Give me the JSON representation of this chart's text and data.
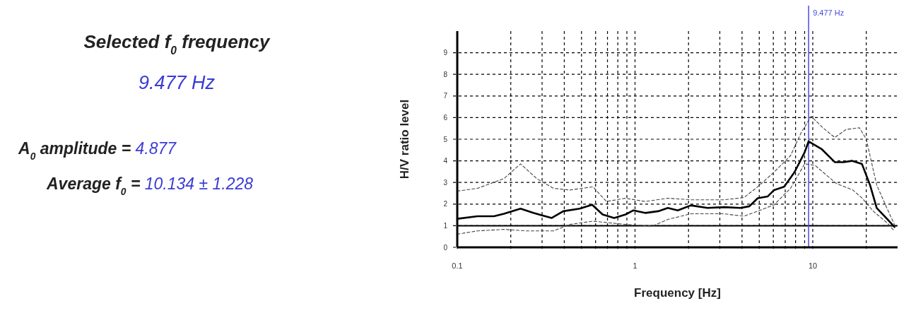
{
  "chart_data": {
    "type": "line",
    "xlabel": "Frequency [Hz]",
    "ylabel": "H/V ratio level",
    "log": "x",
    "grid": true,
    "marker": "none",
    "xlim": [
      0.1,
      30
    ],
    "ylim": [
      0,
      10
    ],
    "xticks": [
      0.1,
      {
        "value": 0.2,
        "label": null
      },
      {
        "value": 0.3,
        "label": null
      },
      {
        "value": 0.4,
        "label": null
      },
      {
        "value": 0.5,
        "label": null
      },
      {
        "value": 0.6,
        "label": null
      },
      {
        "value": 0.7,
        "label": null
      },
      {
        "value": 0.8,
        "label": null
      },
      {
        "value": 0.9,
        "label": null
      },
      1,
      {
        "value": 2,
        "label": null
      },
      {
        "value": 3,
        "label": null
      },
      {
        "value": 4,
        "label": null
      },
      {
        "value": 5,
        "label": null
      },
      {
        "value": 6,
        "label": null
      },
      {
        "value": 7,
        "label": null
      },
      {
        "value": 8,
        "label": null
      },
      {
        "value": 9,
        "label": null
      },
      10,
      {
        "value": 20,
        "label": null
      }
    ],
    "yticks": [
      0,
      1,
      2,
      3,
      4,
      5,
      6,
      7,
      8,
      9
    ],
    "series": [
      {
        "color": "#000000",
        "line_style": "solid",
        "x": [
          0.1,
          0.13,
          0.161,
          0.183,
          0.227,
          0.268,
          0.34,
          0.395,
          0.488,
          0.574,
          0.657,
          0.763,
          0.885,
          0.98,
          1.14,
          1.35,
          1.53,
          1.74,
          2.06,
          2.56,
          3.17,
          3.93,
          4.4,
          4.9,
          5.57,
          6.06,
          6.9,
          7.9,
          9.0,
          9.477,
          11.2,
          13.3,
          14.9,
          16.6,
          18.9,
          21.0,
          22.9,
          26.1,
          28.8
        ],
        "values": [
          1.32,
          1.44,
          1.44,
          1.55,
          1.79,
          1.59,
          1.36,
          1.67,
          1.79,
          1.97,
          1.52,
          1.36,
          1.52,
          1.71,
          1.59,
          1.67,
          1.82,
          1.71,
          1.94,
          1.82,
          1.86,
          1.82,
          1.9,
          2.27,
          2.35,
          2.65,
          2.8,
          3.48,
          4.39,
          4.9,
          4.55,
          3.94,
          3.94,
          4.0,
          3.86,
          2.88,
          1.82,
          1.33,
          0.94
        ]
      },
      {
        "color": "#444444",
        "line_style": "dashed",
        "x": [
          0.1,
          0.13,
          0.183,
          0.227,
          0.28,
          0.348,
          0.43,
          0.58,
          0.69,
          0.885,
          1.14,
          1.53,
          2.06,
          3.17,
          4.1,
          4.9,
          6.06,
          7.5,
          8.6,
          9.8,
          11.4,
          13.3,
          15.4,
          18.3,
          20.0,
          22.9,
          26.1,
          28.8
        ],
        "values": [
          2.6,
          2.73,
          3.18,
          3.86,
          3.18,
          2.73,
          2.65,
          2.8,
          2.12,
          2.27,
          2.12,
          2.27,
          2.2,
          2.2,
          2.3,
          2.8,
          3.48,
          4.24,
          5.3,
          6.06,
          5.53,
          5.08,
          5.45,
          5.53,
          5.0,
          2.88,
          1.82,
          1.06
        ]
      },
      {
        "color": "#444444",
        "line_style": "dashed",
        "x": [
          0.1,
          0.13,
          0.183,
          0.246,
          0.348,
          0.43,
          0.58,
          0.885,
          1.25,
          1.53,
          2.06,
          3.17,
          4.1,
          4.9,
          6.06,
          7.5,
          9.0,
          10.3,
          11.4,
          13.6,
          16.8,
          19.0,
          21.9,
          26.1,
          28.8
        ],
        "values": [
          0.61,
          0.76,
          0.83,
          0.76,
          0.76,
          1.06,
          1.21,
          1.06,
          0.98,
          1.29,
          1.55,
          1.55,
          1.44,
          1.67,
          1.97,
          2.73,
          3.86,
          3.79,
          3.48,
          2.95,
          2.65,
          2.27,
          1.67,
          1.14,
          0.76
        ]
      }
    ],
    "ref_lines": [
      {
        "axis": "y",
        "value": 1,
        "color": "#000000",
        "line_style": "solid"
      },
      {
        "axis": "x",
        "value": 9.477,
        "label": "9.477 Hz",
        "color": "#4a4ae0",
        "line_style": "solid"
      }
    ],
    "annotations": [
      "Selected f$_{0}$ frequency",
      "9.477 Hz",
      "A$_{0}$ amplitude = ",
      "4.877",
      "Average f$_{0}$ = ",
      "10.134 ± 1.228"
    ]
  }
}
